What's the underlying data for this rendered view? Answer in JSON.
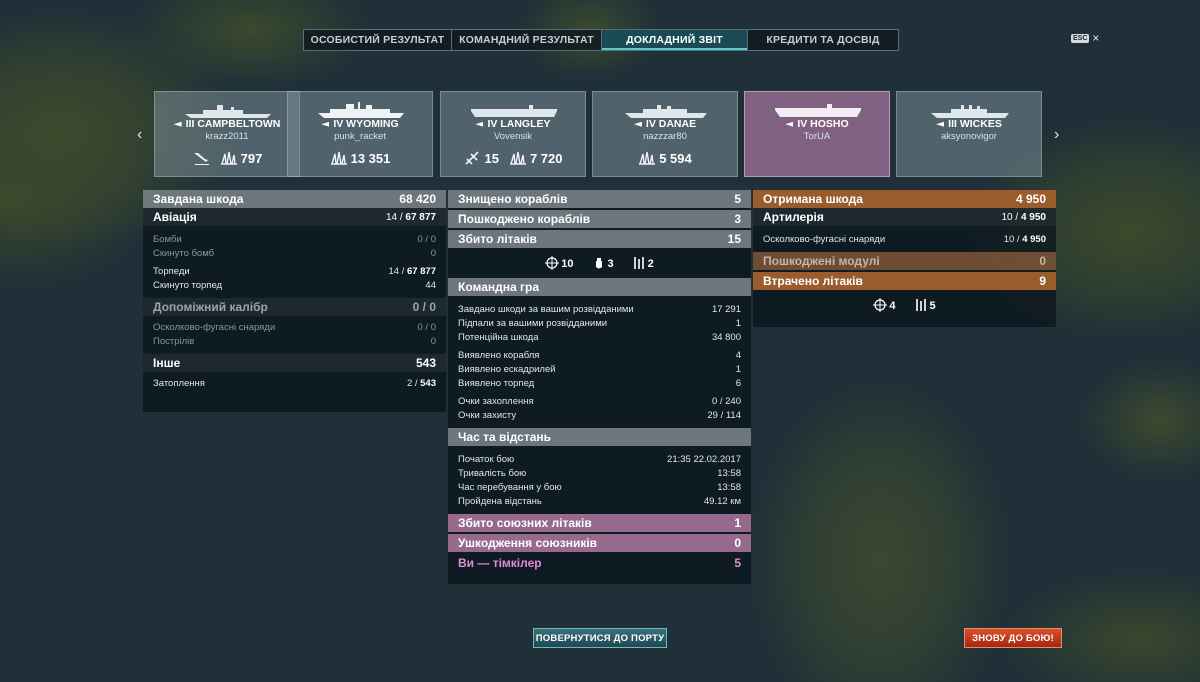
{
  "tabs": [
    {
      "label": "ОСОБИСТИЙ РЕЗУЛЬТАТ"
    },
    {
      "label": "КОМАНДНИЙ РЕЗУЛЬТАТ"
    },
    {
      "label": "ДОКЛАДНИЙ ЗВІТ"
    },
    {
      "label": "КРЕДИТИ ТА ДОСВІД"
    }
  ],
  "esc": {
    "key": "ESC",
    "close": "×"
  },
  "nav": {
    "prev": "‹",
    "next": "›"
  },
  "ships": [
    {
      "tier": "III",
      "name": "CAMPBELTOWN",
      "player": "krazz2011",
      "stats": [
        {
          "icon": "plane-down-icon",
          "value": ""
        },
        {
          "icon": "damage-icon",
          "value": "797"
        }
      ]
    },
    {
      "tier": "IV",
      "name": "WYOMING",
      "player": "punk_racket",
      "stats": [
        {
          "icon": "damage-icon",
          "value": "13 351"
        }
      ]
    },
    {
      "tier": "IV",
      "name": "LANGLEY",
      "player": "Vovensik",
      "stats": [
        {
          "icon": "plane-icon",
          "value": "15"
        },
        {
          "icon": "damage-icon",
          "value": "7 720"
        }
      ]
    },
    {
      "tier": "IV",
      "name": "DANAE",
      "player": "nazzzar80",
      "stats": [
        {
          "icon": "damage-icon",
          "value": "5 594"
        }
      ]
    },
    {
      "tier": "IV",
      "name": "HOSHO",
      "player": "TorUA",
      "stats": []
    },
    {
      "tier": "III",
      "name": "WICKES",
      "player": "aksyonovigor",
      "stats": []
    }
  ],
  "left": {
    "damage": {
      "label": "Завдана шкода",
      "value": "68 420"
    },
    "aviation": {
      "label": "Авіація",
      "value": "14 / ",
      "value_b": "67 877"
    },
    "bombs": {
      "label": "Бомби",
      "value": "0 / 0"
    },
    "bombs_dropped": {
      "label": "Скинуто бомб",
      "value": "0"
    },
    "torpedoes": {
      "label": "Торпеди",
      "value": "14 / ",
      "value_b": "67 877"
    },
    "torpedoes_dropped": {
      "label": "Скинуто торпед",
      "value": "44"
    },
    "secondary": {
      "label": "Допоміжний калібр",
      "value": "0 / 0"
    },
    "he_shells": {
      "label": "Осколково-фугасні снаряди",
      "value": "0 / 0"
    },
    "shots": {
      "label": "Пострілів",
      "value": "0"
    },
    "other": {
      "label": "Інше",
      "value": "543"
    },
    "flooding": {
      "label": "Затоплення",
      "value": "2 / ",
      "value_b": "543"
    }
  },
  "center": {
    "destroyed": {
      "label": "Знищено кораблів",
      "value": "5"
    },
    "damaged": {
      "label": "Пошкоджено кораблів",
      "value": "3"
    },
    "planes_shot": {
      "label": "Збито літаків",
      "value": "15"
    },
    "icons": [
      {
        "icon": "crosshair-icon",
        "value": "10"
      },
      {
        "icon": "bomb-icon",
        "value": "3"
      },
      {
        "icon": "torpedo-icon",
        "value": "2"
      }
    ],
    "team_play": {
      "title": "Командна гра",
      "rows": [
        {
          "label": "Завдано шкоди за вашим розвідданими",
          "value": "17 291"
        },
        {
          "label": "Підпали за вашими розвідданими",
          "value": "1"
        },
        {
          "label": "Потенційна шкода",
          "value": "34 800"
        },
        {
          "label": "Виявлено корабля",
          "value": "4"
        },
        {
          "label": "Виявлено ескадрилей",
          "value": "1"
        },
        {
          "label": "Виявлено торпед",
          "value": "6"
        },
        {
          "label": "Очки захоплення",
          "value": "0 / 240"
        },
        {
          "label": "Очки захисту",
          "value": "29 / 114"
        }
      ]
    },
    "time": {
      "title": "Час та відстань",
      "rows": [
        {
          "label": "Початок бою",
          "value": "21:35  22.02.2017"
        },
        {
          "label": "Тривалість бою",
          "value": "13:58"
        },
        {
          "label": "Час перебування у бою",
          "value": "13:58"
        },
        {
          "label": "Пройдена відстань",
          "value": "49.12 км"
        }
      ]
    },
    "allied_planes": {
      "label": "Збито союзних літаків",
      "value": "1"
    },
    "allied_damage": {
      "label": "Ушкодження союзників",
      "value": "0"
    },
    "teamkiller": {
      "label": "Ви — тімкілер",
      "value": "5"
    }
  },
  "right": {
    "received": {
      "label": "Отримана шкода",
      "value": "4 950"
    },
    "artillery": {
      "label": "Артилерія",
      "value": "10 / ",
      "value_b": "4 950"
    },
    "he_shells": {
      "label": "Осколково-фугасні снаряди",
      "value": "10 / ",
      "value_b": "4 950"
    },
    "modules": {
      "label": "Пошкоджені модулі",
      "value": "0"
    },
    "planes_lost": {
      "label": "Втрачено літаків",
      "value": "9"
    },
    "icons": [
      {
        "icon": "crosshair-icon",
        "value": "4"
      },
      {
        "icon": "torpedo-icon",
        "value": "5"
      }
    ]
  },
  "buttons": {
    "port": "ПОВЕРНУТИСЯ ДО ПОРТУ",
    "battle": "ЗНОВУ ДО БОЮ!"
  }
}
